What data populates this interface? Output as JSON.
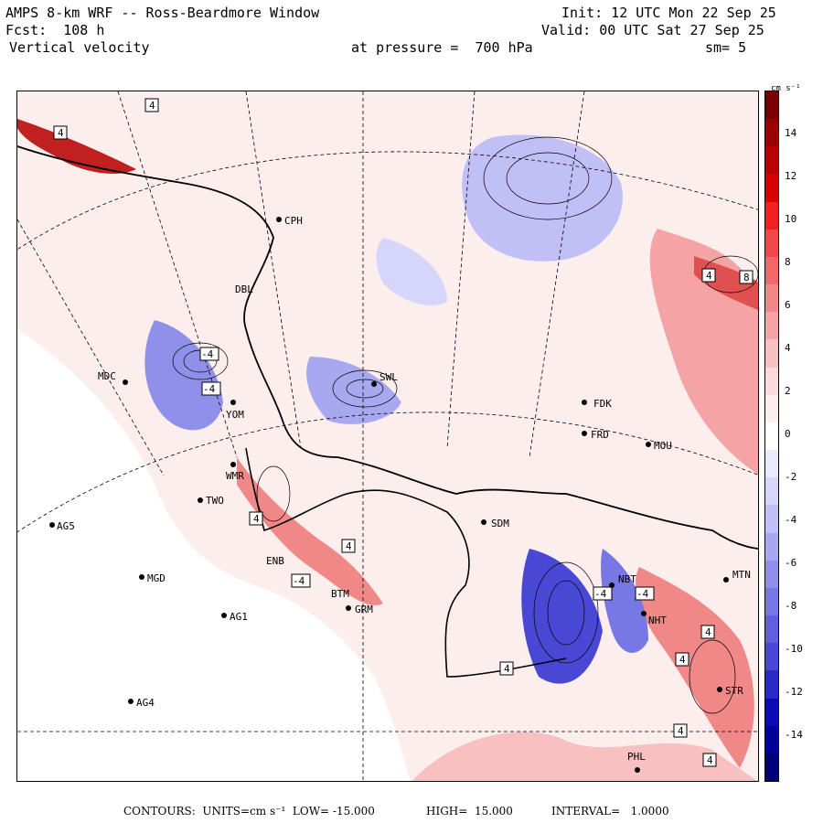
{
  "header": {
    "line1_left": "AMPS 8-km WRF -- Ross-Beardmore Window",
    "line1_right": "Init: 12 UTC Mon 22 Sep 25",
    "line2_left": "Fcst:  108 h",
    "line2_right": "Valid: 00 UTC Sat 27 Sep 25",
    "line3_left": "Vertical velocity",
    "line3_mid": "at pressure =  700 hPa",
    "line3_right": "sm= 5"
  },
  "colorbar": {
    "units_label": "cm s⁻¹",
    "ticks": [
      "14",
      "12",
      "10",
      "8",
      "6",
      "4",
      "2",
      "0",
      "-2",
      "-4",
      "-6",
      "-8",
      "-10",
      "-12",
      "-14"
    ],
    "colors": [
      "#7a0000",
      "#9a0000",
      "#b80000",
      "#d80000",
      "#f02020",
      "#f04848",
      "#f06868",
      "#f08888",
      "#f4a4a4",
      "#f8c0c0",
      "#fadada",
      "#fdeeee",
      "#ffffff",
      "#eaeaff",
      "#d6d6fb",
      "#c0c0f6",
      "#a8a8f0",
      "#9090ea",
      "#7878e4",
      "#6060dc",
      "#4848d4",
      "#2a2ac8",
      "#0a0ab8",
      "#00009a",
      "#000078"
    ]
  },
  "stations": [
    {
      "code": "CPH"
    },
    {
      "code": "MDC"
    },
    {
      "code": "YOM"
    },
    {
      "code": "WMR"
    },
    {
      "code": "TWO"
    },
    {
      "code": "AG5"
    },
    {
      "code": "MGD"
    },
    {
      "code": "AG1"
    },
    {
      "code": "AG4"
    },
    {
      "code": "SDM"
    },
    {
      "code": "GRM"
    },
    {
      "code": "FDK"
    },
    {
      "code": "FRD"
    },
    {
      "code": "MOU"
    },
    {
      "code": "NBT"
    },
    {
      "code": "NHT"
    },
    {
      "code": "MTN"
    },
    {
      "code": "PHL"
    },
    {
      "code": "SWL"
    },
    {
      "code": "ENB"
    },
    {
      "code": "BTM"
    },
    {
      "code": "STR"
    },
    {
      "code": "DBL"
    }
  ],
  "contour_labels": {
    "pos": "4",
    "neg": "-4",
    "pos8": "8"
  },
  "footer": {
    "contours": "CONTOURS:  UNITS=cm s⁻¹  LOW= -15.000",
    "high": "HIGH=  15.000",
    "interval": "INTERVAL=   1.0000"
  }
}
